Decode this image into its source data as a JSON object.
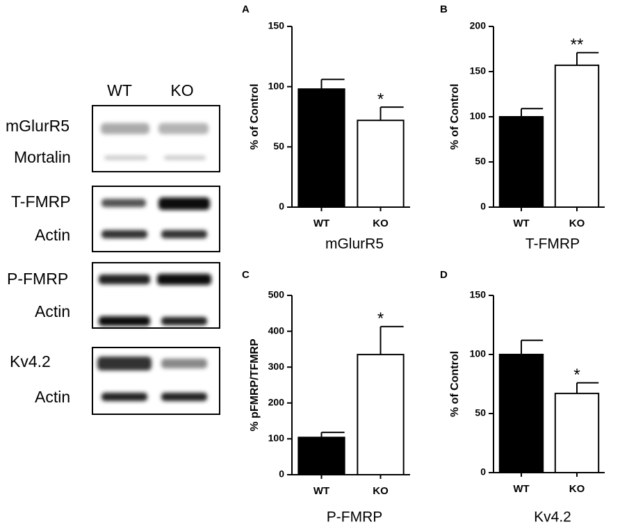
{
  "blot": {
    "columns": [
      "WT",
      "KO"
    ],
    "panels": [
      {
        "labels": [
          "mGlurR5",
          "Mortalin"
        ]
      },
      {
        "labels": [
          "T-FMRP",
          "Actin"
        ]
      },
      {
        "labels": [
          "P-FMRP",
          "Actin"
        ]
      },
      {
        "labels": [
          "Kv4.2",
          "Actin"
        ]
      }
    ]
  },
  "chart_data": [
    {
      "type": "bar",
      "panel": "A",
      "ylabel": "% of Control",
      "xlabel": "mGlurR5",
      "categories": [
        "WT",
        "KO"
      ],
      "values": [
        98,
        72
      ],
      "errors": [
        8,
        11
      ],
      "colors": [
        "#000000",
        "#ffffff"
      ],
      "annotations": [
        {
          "text": "*",
          "x": "KO"
        }
      ],
      "ylim": [
        0,
        150
      ],
      "yticks": [
        0,
        50,
        100,
        150
      ]
    },
    {
      "type": "bar",
      "panel": "B",
      "ylabel": "% of  Control",
      "xlabel": "T-FMRP",
      "categories": [
        "WT",
        "KO"
      ],
      "values": [
        100,
        157
      ],
      "errors": [
        9,
        14
      ],
      "colors": [
        "#000000",
        "#ffffff"
      ],
      "annotations": [
        {
          "text": "**",
          "x": "KO"
        }
      ],
      "ylim": [
        0,
        200
      ],
      "yticks": [
        0,
        50,
        100,
        150,
        200
      ]
    },
    {
      "type": "bar",
      "panel": "C",
      "ylabel": "% pFMRP/TFMRP",
      "xlabel": "P-FMRP",
      "categories": [
        "WT",
        "KO"
      ],
      "values": [
        104,
        335
      ],
      "errors": [
        14,
        78
      ],
      "colors": [
        "#000000",
        "#ffffff"
      ],
      "annotations": [
        {
          "text": "*",
          "x": "KO"
        }
      ],
      "ylim": [
        0,
        500
      ],
      "yticks": [
        0,
        100,
        200,
        300,
        400,
        500
      ]
    },
    {
      "type": "bar",
      "panel": "D",
      "ylabel": "% of  Control",
      "xlabel": "Kv4.2",
      "categories": [
        "WT",
        "KO"
      ],
      "values": [
        100,
        67
      ],
      "errors": [
        12,
        9
      ],
      "colors": [
        "#000000",
        "#ffffff"
      ],
      "annotations": [
        {
          "text": "*",
          "x": "KO"
        }
      ],
      "ylim": [
        0,
        150
      ],
      "yticks": [
        0,
        50,
        100,
        150
      ]
    }
  ]
}
